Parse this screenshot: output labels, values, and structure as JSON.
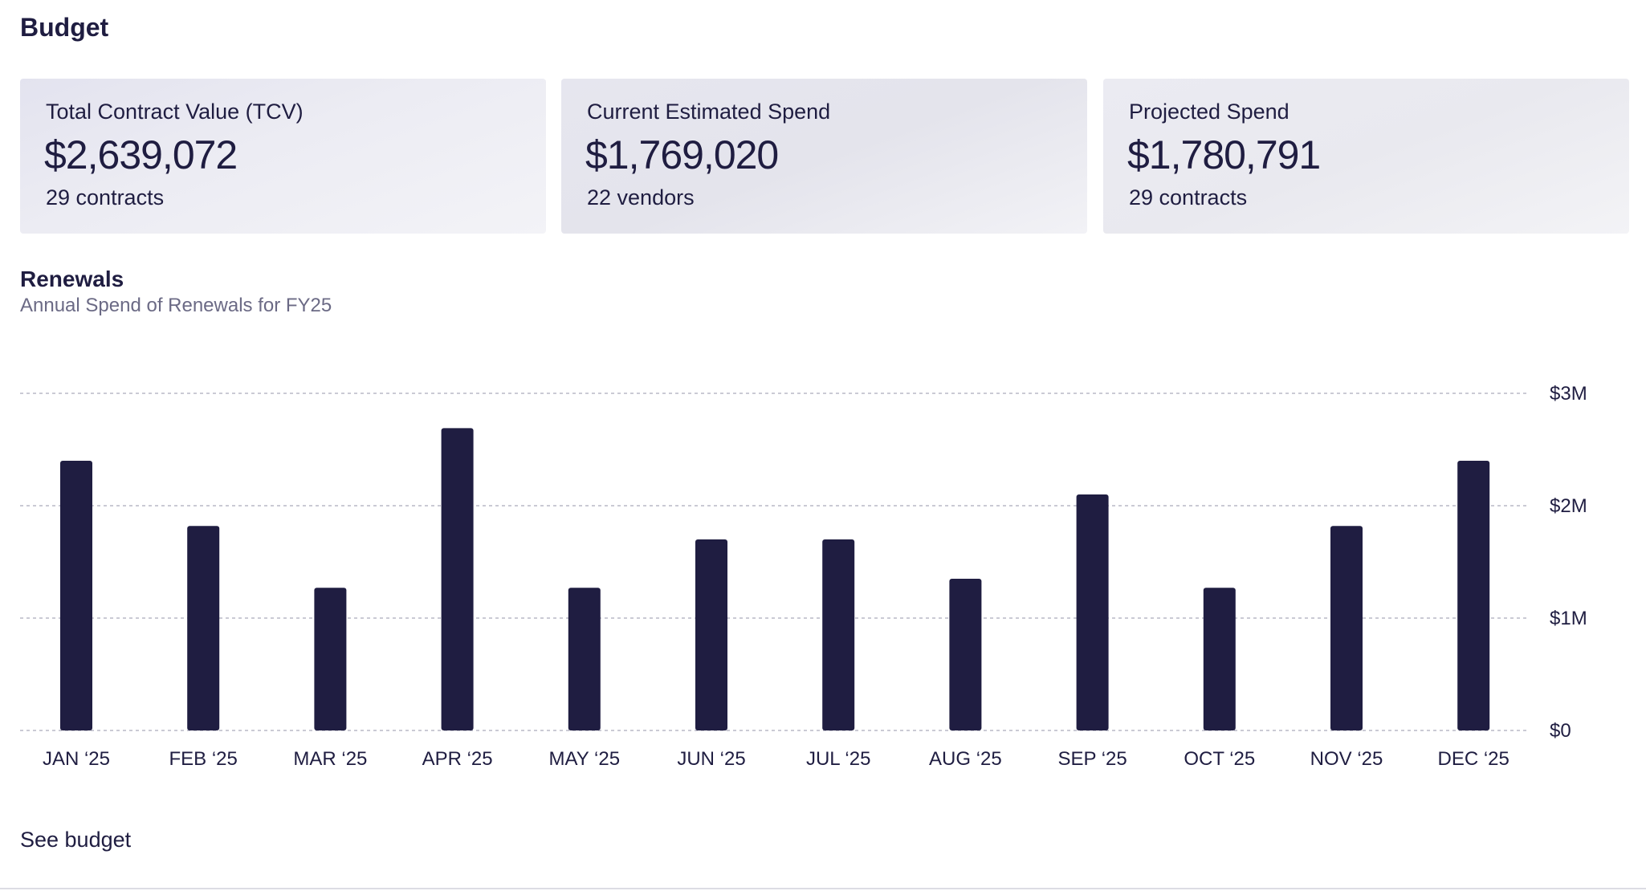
{
  "header": {
    "title": "Budget"
  },
  "cards": [
    {
      "label": "Total Contract Value (TCV)",
      "value": "$2,639,072",
      "sub": "29 contracts"
    },
    {
      "label": "Current Estimated Spend",
      "value": "$1,769,020",
      "sub": "22 vendors"
    },
    {
      "label": "Projected Spend",
      "value": "$1,780,791",
      "sub": "29 contracts"
    }
  ],
  "renewals": {
    "title": "Renewals",
    "subtitle": "Annual Spend of Renewals for FY25"
  },
  "chart_data": {
    "type": "bar",
    "title": "",
    "xlabel": "",
    "ylabel": "",
    "categories": [
      "JAN ‘25",
      "FEB ‘25",
      "MAR ‘25",
      "APR ‘25",
      "MAY ‘25",
      "JUN ‘25",
      "JUL ‘25",
      "AUG ‘25",
      "SEP ‘25",
      "OCT ‘25",
      "NOV ‘25",
      "DEC ‘25"
    ],
    "values": [
      2400000,
      1820000,
      1270000,
      2690000,
      1270000,
      1700000,
      1700000,
      1350000,
      2100000,
      1270000,
      1820000,
      2400000
    ],
    "ylim": [
      0,
      3000000
    ],
    "yticks": [
      0,
      1000000,
      2000000,
      3000000
    ],
    "ytick_labels": [
      "$0",
      "$1M",
      "$2M",
      "$3M"
    ],
    "grid": true,
    "y_axis_side": "right",
    "bar_color": "#1f1d41"
  },
  "footer": {
    "link_label": "See budget"
  },
  "colors": {
    "primary": "#1f1d41",
    "muted": "#6b6a85",
    "grid": "#b9b9c6"
  }
}
